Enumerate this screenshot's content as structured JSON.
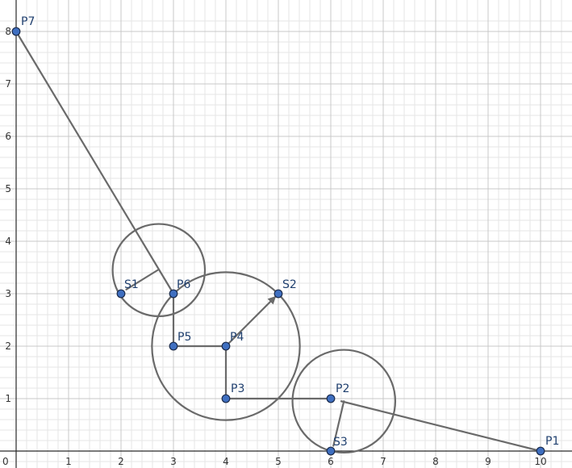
{
  "chart_data": {
    "type": "scatter",
    "title": "",
    "xlabel": "",
    "ylabel": "",
    "xlim": [
      0,
      10.6
    ],
    "ylim": [
      -0.33,
      8.23
    ],
    "x_ticks": [
      "0",
      "1",
      "2",
      "3",
      "4",
      "5",
      "6",
      "7",
      "8",
      "9",
      "10"
    ],
    "y_ticks": [
      "1",
      "2",
      "3",
      "4",
      "5",
      "6",
      "7",
      "8"
    ],
    "minor_grid_step": 0.2,
    "grid": true,
    "colors": {
      "point_fill": "#3f6fc0",
      "point_stroke": "#1a2b4c",
      "lines": "#6a6a6a",
      "labels": "#1f3f6e"
    },
    "points": [
      {
        "name": "P1",
        "x": 10,
        "y": 0
      },
      {
        "name": "P2",
        "x": 6,
        "y": 1
      },
      {
        "name": "S3",
        "x": 6,
        "y": 0
      },
      {
        "name": "P3",
        "x": 4,
        "y": 1
      },
      {
        "name": "P4",
        "x": 4,
        "y": 2
      },
      {
        "name": "S2",
        "x": 5,
        "y": 3
      },
      {
        "name": "P5",
        "x": 3,
        "y": 2
      },
      {
        "name": "P6",
        "x": 3,
        "y": 3
      },
      {
        "name": "S1",
        "x": 2,
        "y": 3
      },
      {
        "name": "P7",
        "x": 0,
        "y": 8
      }
    ],
    "segments": [
      {
        "from": [
          10,
          0
        ],
        "to": [
          6.2,
          0.95
        ]
      },
      {
        "from": [
          6,
          1
        ],
        "to": [
          4,
          1
        ]
      },
      {
        "from": [
          4,
          1
        ],
        "to": [
          4,
          2
        ]
      },
      {
        "from": [
          4,
          2
        ],
        "to": [
          3,
          2
        ]
      },
      {
        "from": [
          3,
          2
        ],
        "to": [
          3,
          3
        ]
      },
      {
        "from": [
          3,
          3
        ],
        "to": [
          0,
          8
        ]
      },
      {
        "from": [
          6.25,
          0.95
        ],
        "to": [
          6.05,
          0.1
        ]
      },
      {
        "from": [
          2.7,
          3.45
        ],
        "to": [
          2.1,
          3.08
        ]
      }
    ],
    "vectors": [
      {
        "from": [
          4,
          2
        ],
        "to": [
          5,
          3
        ]
      }
    ],
    "circles": [
      {
        "cx": 6.25,
        "cy": 0.95,
        "r": 0.98
      },
      {
        "cx": 4.0,
        "cy": 2.0,
        "r": 1.41
      },
      {
        "cx": 2.72,
        "cy": 3.45,
        "r": 0.88
      }
    ],
    "label_offsets": {
      "P1": [
        6,
        -8
      ],
      "P2": [
        6,
        -8
      ],
      "S3": [
        3,
        -7
      ],
      "P3": [
        6,
        -8
      ],
      "P4": [
        5,
        -7
      ],
      "S2": [
        5,
        -7
      ],
      "P5": [
        5,
        -7
      ],
      "P6": [
        4,
        -7
      ],
      "S1": [
        4,
        -7
      ],
      "P7": [
        6,
        -8
      ]
    }
  }
}
